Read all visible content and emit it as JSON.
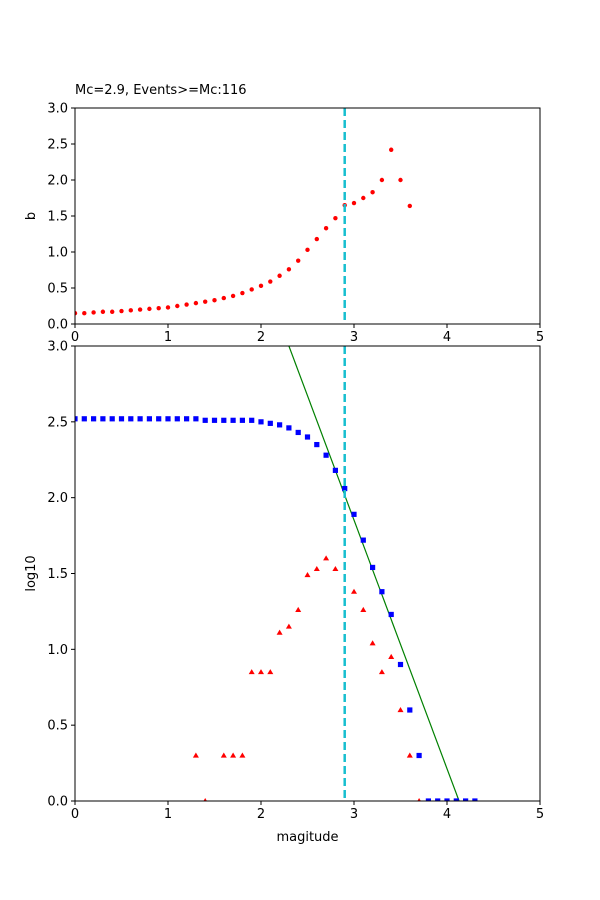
{
  "figure": {
    "background": "#ffffff"
  },
  "chart_data": [
    {
      "type": "scatter",
      "title": "Mc=2.9, Events>=Mc:116",
      "xlabel": "",
      "ylabel": "b",
      "xlim": [
        0,
        5
      ],
      "ylim": [
        0,
        3
      ],
      "xticks": [
        "0",
        "1",
        "2",
        "3",
        "4",
        "5"
      ],
      "yticks": [
        "0.0",
        "0.5",
        "1.0",
        "1.5",
        "2.0",
        "2.5",
        "3.0"
      ],
      "grid": false,
      "mc_line": {
        "x": 2.9,
        "color": "#17becf",
        "style": "dashed"
      },
      "series": [
        {
          "marker": "circle",
          "color": "#ff0000",
          "x": [
            0.0,
            0.1,
            0.2,
            0.3,
            0.4,
            0.5,
            0.6,
            0.7,
            0.8,
            0.9,
            1.0,
            1.1,
            1.2,
            1.3,
            1.4,
            1.5,
            1.6,
            1.7,
            1.8,
            1.9,
            2.0,
            2.1,
            2.2,
            2.3,
            2.4,
            2.5,
            2.6,
            2.7,
            2.8,
            2.9,
            3.0,
            3.1,
            3.2,
            3.3,
            3.4,
            3.5,
            3.6
          ],
          "y": [
            0.15,
            0.15,
            0.16,
            0.17,
            0.17,
            0.18,
            0.19,
            0.2,
            0.21,
            0.22,
            0.23,
            0.25,
            0.27,
            0.29,
            0.31,
            0.33,
            0.36,
            0.39,
            0.43,
            0.48,
            0.53,
            0.59,
            0.67,
            0.76,
            0.88,
            1.03,
            1.18,
            1.33,
            1.47,
            1.65,
            1.68,
            1.75,
            1.83,
            2.0,
            2.42,
            2.0,
            1.64
          ]
        }
      ]
    },
    {
      "type": "scatter",
      "title": "",
      "xlabel": "magitude",
      "ylabel": "log10",
      "xlim": [
        0,
        5
      ],
      "ylim": [
        0,
        3
      ],
      "xticks": [
        "0",
        "1",
        "2",
        "3",
        "4",
        "5"
      ],
      "yticks": [
        "0.0",
        "0.5",
        "1.0",
        "1.5",
        "2.0",
        "2.5",
        "3.0"
      ],
      "grid": false,
      "mc_line": {
        "x": 2.9,
        "color": "#17becf",
        "style": "dashed"
      },
      "fit_line": {
        "color": "#008000",
        "x": [
          2.3,
          4.13
        ],
        "y": [
          3.0,
          0.0
        ]
      },
      "series": [
        {
          "marker": "square",
          "color": "#0000ff",
          "x": [
            0.0,
            0.1,
            0.2,
            0.3,
            0.4,
            0.5,
            0.6,
            0.7,
            0.8,
            0.9,
            1.0,
            1.1,
            1.2,
            1.3,
            1.4,
            1.5,
            1.6,
            1.7,
            1.8,
            1.9,
            2.0,
            2.1,
            2.2,
            2.3,
            2.4,
            2.5,
            2.6,
            2.7,
            2.8,
            2.9,
            3.0,
            3.1,
            3.2,
            3.3,
            3.4,
            3.5,
            3.6,
            3.7,
            3.8,
            3.9,
            4.0,
            4.1,
            4.2,
            4.3
          ],
          "y": [
            2.52,
            2.52,
            2.52,
            2.52,
            2.52,
            2.52,
            2.52,
            2.52,
            2.52,
            2.52,
            2.52,
            2.52,
            2.52,
            2.52,
            2.51,
            2.51,
            2.51,
            2.51,
            2.51,
            2.51,
            2.5,
            2.49,
            2.48,
            2.46,
            2.43,
            2.4,
            2.35,
            2.28,
            2.18,
            2.06,
            1.89,
            1.72,
            1.54,
            1.38,
            1.23,
            0.9,
            0.6,
            0.3,
            0.0,
            0.0,
            0.0,
            0.0,
            0.0,
            0.0
          ]
        },
        {
          "marker": "triangle",
          "color": "#ff0000",
          "x": [
            1.3,
            1.4,
            1.6,
            1.7,
            1.8,
            1.9,
            2.0,
            2.1,
            2.2,
            2.3,
            2.4,
            2.5,
            2.6,
            2.7,
            2.8,
            3.0,
            3.1,
            3.2,
            3.3,
            3.4,
            3.5,
            3.6,
            3.7
          ],
          "y": [
            0.3,
            0.0,
            0.3,
            0.3,
            0.3,
            0.85,
            0.85,
            0.85,
            1.11,
            1.15,
            1.26,
            1.49,
            1.53,
            1.6,
            1.53,
            1.38,
            1.26,
            1.04,
            0.85,
            0.95,
            0.6,
            0.3,
            0.0
          ]
        }
      ]
    }
  ]
}
